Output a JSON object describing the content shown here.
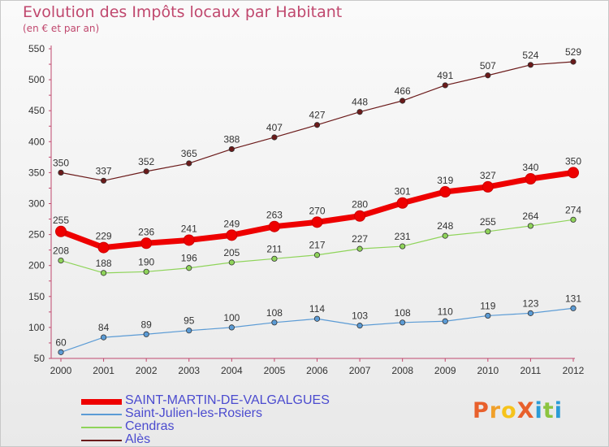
{
  "title": "Evolution des Impôts locaux par Habitant",
  "subtitle": "(en € et par an)",
  "chart_data": {
    "type": "line",
    "title": "Evolution des Impôts locaux par Habitant",
    "subtitle": "(en € et par an)",
    "x": [
      "2000",
      "2001",
      "2002",
      "2003",
      "2004",
      "2005",
      "2006",
      "2007",
      "2008",
      "2009",
      "2010",
      "2011",
      "2012"
    ],
    "ylim": [
      50,
      550
    ],
    "yticks": [
      50,
      100,
      150,
      200,
      250,
      300,
      350,
      400,
      450,
      500,
      550
    ],
    "grid": false,
    "legend": "bottom-left",
    "series": [
      {
        "name": "SAINT-MARTIN-DE-VALGALGUES",
        "color": "#ee0000",
        "values": [
          255,
          229,
          236,
          241,
          249,
          263,
          270,
          280,
          301,
          319,
          327,
          340,
          350
        ]
      },
      {
        "name": "Saint-Julien-les-Rosiers",
        "color": "#5b9bd5",
        "values": [
          60,
          84,
          89,
          95,
          100,
          108,
          114,
          103,
          108,
          110,
          119,
          123,
          131
        ]
      },
      {
        "name": "Cendras",
        "color": "#8fd45a",
        "values": [
          208,
          188,
          190,
          196,
          205,
          211,
          217,
          227,
          231,
          248,
          255,
          264,
          274
        ]
      },
      {
        "name": "Alès",
        "color": "#6b1a1a",
        "values": [
          350,
          337,
          352,
          365,
          388,
          407,
          427,
          448,
          466,
          491,
          507,
          524,
          529
        ]
      }
    ]
  },
  "logo": {
    "text": "ProXiti",
    "colors": [
      "#e8602c",
      "#f0a02a",
      "#f6c31b",
      "#e8602c",
      "#2b9bd6",
      "#8cc43f",
      "#2b9bd6"
    ]
  }
}
